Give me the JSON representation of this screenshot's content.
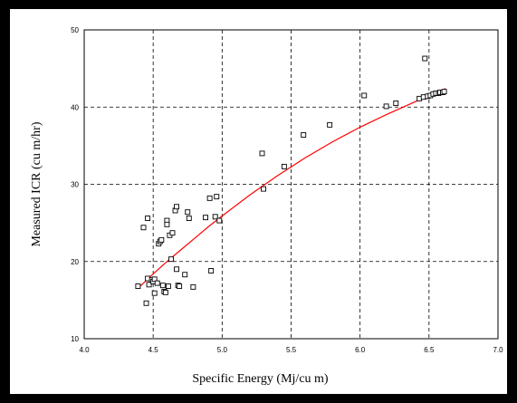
{
  "chart_data": {
    "type": "scatter",
    "xlabel": "Specific Energy (Mj/cu m)",
    "ylabel": "Measured ICR (cu m/hr)",
    "xlim": [
      4.0,
      7.0
    ],
    "ylim": [
      10,
      50
    ],
    "xticks": [
      "4.0",
      "4.5",
      "5.0",
      "5.5",
      "6.0",
      "6.5",
      "7.0"
    ],
    "yticks": [
      "10",
      "20",
      "30",
      "40",
      "50"
    ],
    "grid": true,
    "grid_style": "dashed",
    "point_color": "#000000",
    "fit_color": "#ff0000",
    "series": [
      {
        "marker": "open-square",
        "points": [
          [
            4.39,
            16.8
          ],
          [
            4.43,
            24.4
          ],
          [
            4.45,
            14.6
          ],
          [
            4.46,
            25.6
          ],
          [
            4.46,
            17.8
          ],
          [
            4.47,
            17.0
          ],
          [
            4.49,
            17.6
          ],
          [
            4.5,
            17.4
          ],
          [
            4.51,
            17.7
          ],
          [
            4.51,
            15.9
          ],
          [
            4.53,
            17.2
          ],
          [
            4.54,
            22.3
          ],
          [
            4.55,
            22.6
          ],
          [
            4.56,
            22.8
          ],
          [
            4.57,
            16.9
          ],
          [
            4.58,
            16.1
          ],
          [
            4.59,
            16.0
          ],
          [
            4.6,
            25.3
          ],
          [
            4.6,
            24.8
          ],
          [
            4.61,
            16.8
          ],
          [
            4.62,
            23.4
          ],
          [
            4.63,
            20.3
          ],
          [
            4.64,
            23.7
          ],
          [
            4.66,
            26.6
          ],
          [
            4.67,
            27.1
          ],
          [
            4.67,
            19.0
          ],
          [
            4.68,
            16.9
          ],
          [
            4.69,
            16.8
          ],
          [
            4.73,
            18.3
          ],
          [
            4.75,
            26.4
          ],
          [
            4.76,
            25.6
          ],
          [
            4.79,
            16.7
          ],
          [
            4.88,
            25.7
          ],
          [
            4.91,
            28.2
          ],
          [
            4.92,
            18.8
          ],
          [
            4.95,
            25.8
          ],
          [
            4.96,
            28.4
          ],
          [
            4.98,
            25.3
          ],
          [
            5.29,
            34.0
          ],
          [
            5.3,
            29.4
          ],
          [
            5.45,
            32.3
          ],
          [
            5.59,
            36.4
          ],
          [
            5.78,
            37.7
          ],
          [
            6.03,
            41.5
          ],
          [
            6.19,
            40.1
          ],
          [
            6.26,
            40.5
          ],
          [
            6.43,
            41.1
          ],
          [
            6.46,
            41.3
          ],
          [
            6.47,
            46.3
          ],
          [
            6.49,
            41.4
          ],
          [
            6.51,
            41.5
          ],
          [
            6.53,
            41.7
          ],
          [
            6.55,
            41.8
          ],
          [
            6.57,
            41.8
          ],
          [
            6.58,
            41.9
          ],
          [
            6.6,
            41.9
          ],
          [
            6.61,
            42.0
          ]
        ]
      }
    ],
    "fit_line": [
      [
        4.4,
        16.7
      ],
      [
        4.5,
        18.4
      ],
      [
        4.6,
        20.0
      ],
      [
        4.7,
        21.5
      ],
      [
        4.8,
        23.0
      ],
      [
        4.9,
        24.5
      ],
      [
        5.0,
        25.9
      ],
      [
        5.2,
        28.6
      ],
      [
        5.4,
        31.1
      ],
      [
        5.6,
        33.4
      ],
      [
        5.8,
        35.5
      ],
      [
        6.0,
        37.4
      ],
      [
        6.2,
        39.1
      ],
      [
        6.4,
        40.7
      ],
      [
        6.5,
        41.5
      ],
      [
        6.62,
        42.4
      ]
    ]
  }
}
